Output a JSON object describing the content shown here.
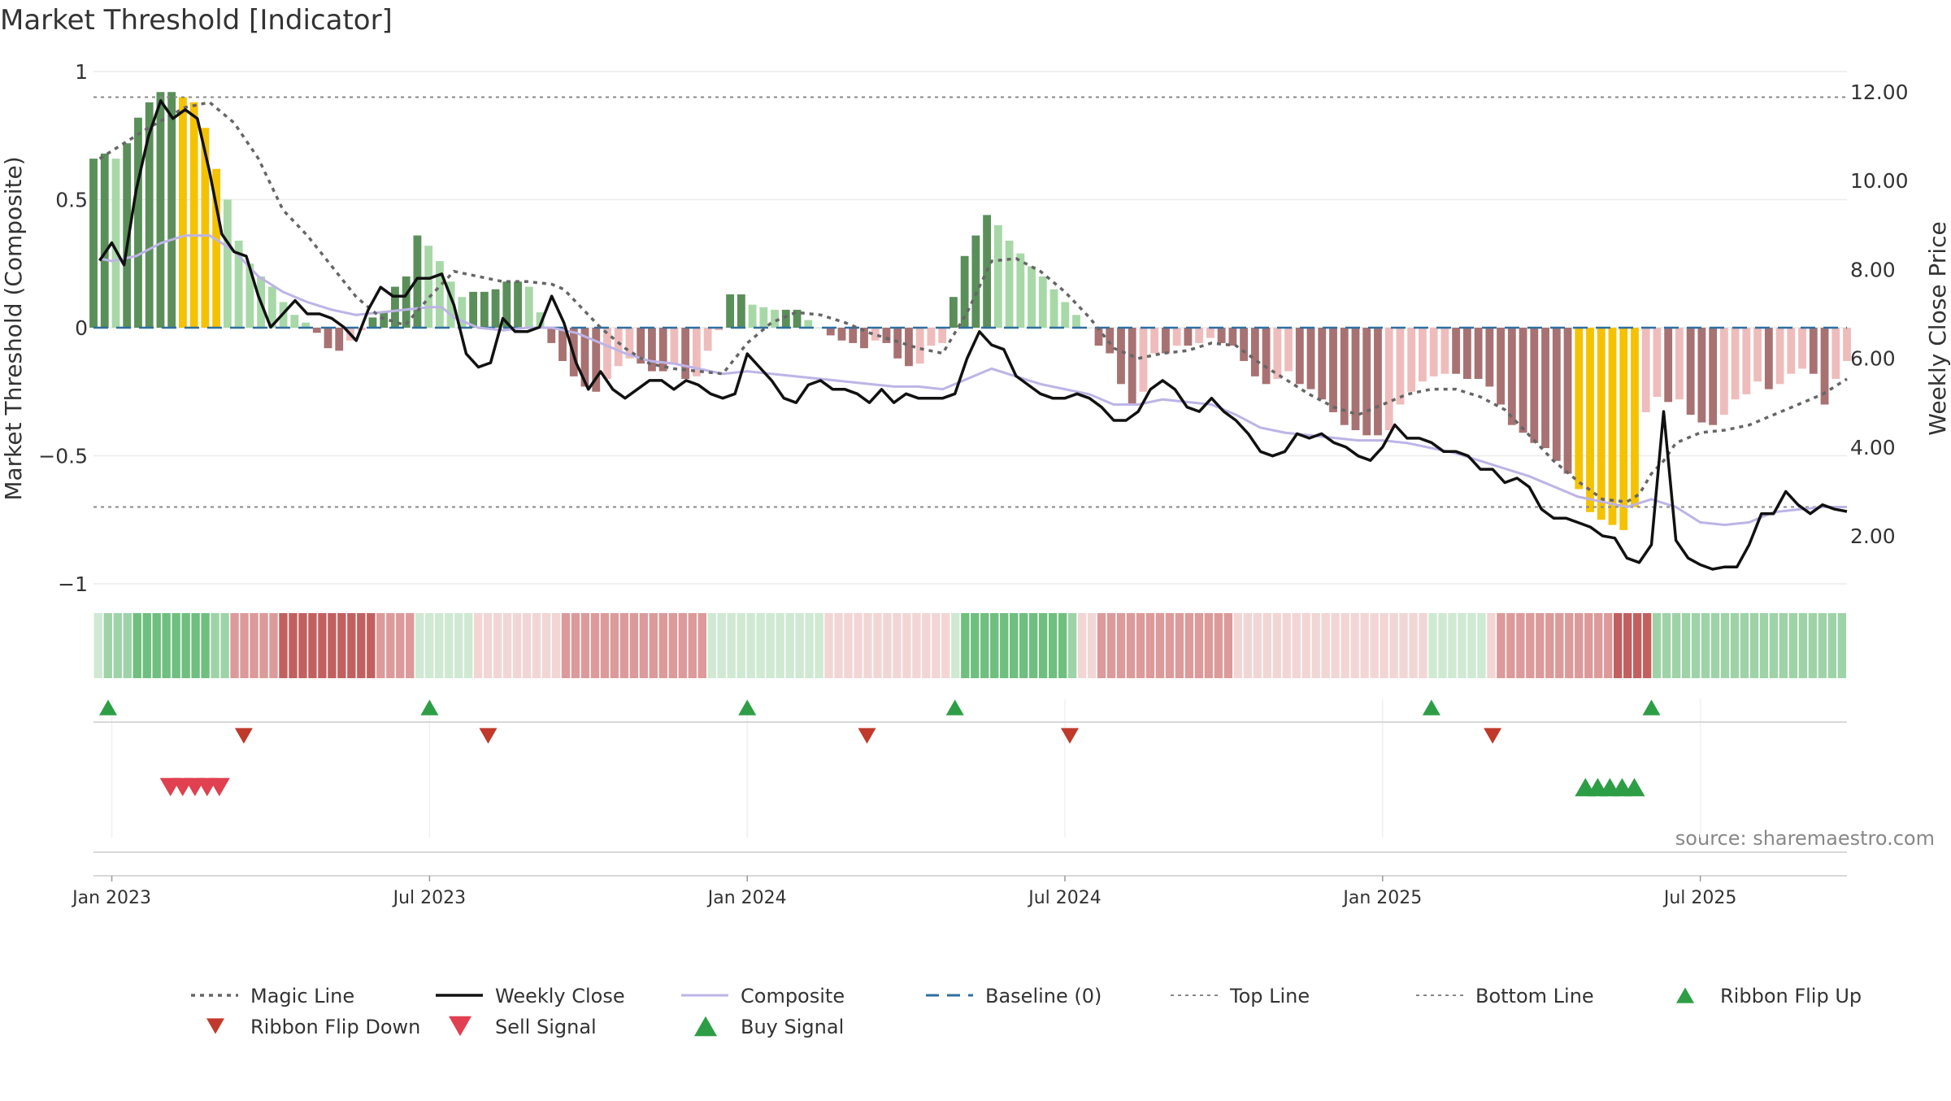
{
  "title": "Market Threshold [Indicator]",
  "source": "source: sharemaestro.com",
  "colors": {
    "green_dark": "#5a8f5a",
    "green_light": "#a8d8a8",
    "red_dark": "#a87272",
    "red_light": "#efbcbc",
    "gold": "#f5c200",
    "weekly_close": "#111111",
    "magic_line": "#666666",
    "composite": "#bdb4e6",
    "baseline": "#2f6f9f",
    "buy": "#2e9e46",
    "sell": "#d33a3a"
  },
  "chart_data": {
    "type": "bar",
    "title": "Market Threshold [Indicator]",
    "ylabel_left": "Market Threshold (Composite)",
    "ylabel_right": "Weekly Close Price",
    "ylim_left": [
      -1,
      1
    ],
    "ylim_right": [
      0.8,
      12.5
    ],
    "left_ticks": [
      {
        "v": 1,
        "label": "1"
      },
      {
        "v": 0.5,
        "label": "0.5"
      },
      {
        "v": 0,
        "label": "0"
      },
      {
        "v": -0.5,
        "label": "−0.5"
      },
      {
        "v": -1,
        "label": "−1"
      }
    ],
    "right_ticks": [
      {
        "v": 12,
        "label": "12.00"
      },
      {
        "v": 10,
        "label": "10.00"
      },
      {
        "v": 8,
        "label": "8.00"
      },
      {
        "v": 6,
        "label": "6.00"
      },
      {
        "v": 4,
        "label": "4.00"
      },
      {
        "v": 2,
        "label": "2.00"
      }
    ],
    "x_ticks": [
      {
        "w": 0,
        "label": "Jan 2023"
      },
      {
        "w": 26,
        "label": "Jul 2023"
      },
      {
        "w": 52,
        "label": "Jan 2024"
      },
      {
        "w": 78,
        "label": "Jul 2024"
      },
      {
        "w": 104,
        "label": "Jan 2025"
      },
      {
        "w": 130,
        "label": "Jul 2025"
      }
    ],
    "x_range_weeks": [
      -1.5,
      142
    ],
    "top_line": 0.9,
    "bottom_line": -0.7,
    "baseline": 0,
    "weekly_close": [
      [
        -1,
        8.2
      ],
      [
        0,
        8.6
      ],
      [
        1,
        8.1
      ],
      [
        2,
        9.8
      ],
      [
        3,
        11.0
      ],
      [
        4,
        11.8
      ],
      [
        5,
        11.4
      ],
      [
        6,
        11.6
      ],
      [
        7,
        11.4
      ],
      [
        8,
        10.2
      ],
      [
        9,
        8.8
      ],
      [
        10,
        8.4
      ],
      [
        11,
        8.3
      ],
      [
        12,
        7.4
      ],
      [
        13,
        6.7
      ],
      [
        14,
        7.0
      ],
      [
        15,
        7.3
      ],
      [
        16,
        7.0
      ],
      [
        17,
        7.0
      ],
      [
        18,
        6.9
      ],
      [
        19,
        6.7
      ],
      [
        20,
        6.4
      ],
      [
        21,
        7.1
      ],
      [
        22,
        7.6
      ],
      [
        23,
        7.4
      ],
      [
        24,
        7.4
      ],
      [
        25,
        7.8
      ],
      [
        26,
        7.8
      ],
      [
        27,
        7.9
      ],
      [
        28,
        7.2
      ],
      [
        29,
        6.1
      ],
      [
        30,
        5.8
      ],
      [
        31,
        5.9
      ],
      [
        32,
        6.9
      ],
      [
        33,
        6.6
      ],
      [
        34,
        6.6
      ],
      [
        35,
        6.7
      ],
      [
        36,
        7.4
      ],
      [
        37,
        6.8
      ],
      [
        38,
        5.9
      ],
      [
        39,
        5.3
      ],
      [
        40,
        5.7
      ],
      [
        41,
        5.3
      ],
      [
        42,
        5.1
      ],
      [
        43,
        5.3
      ],
      [
        44,
        5.5
      ],
      [
        45,
        5.5
      ],
      [
        46,
        5.3
      ],
      [
        47,
        5.5
      ],
      [
        48,
        5.4
      ],
      [
        49,
        5.2
      ],
      [
        50,
        5.1
      ],
      [
        51,
        5.2
      ],
      [
        52,
        6.1
      ],
      [
        53,
        5.8
      ],
      [
        54,
        5.5
      ],
      [
        55,
        5.1
      ],
      [
        56,
        5.0
      ],
      [
        57,
        5.4
      ],
      [
        58,
        5.5
      ],
      [
        59,
        5.3
      ],
      [
        60,
        5.3
      ],
      [
        61,
        5.2
      ],
      [
        62,
        5.0
      ],
      [
        63,
        5.3
      ],
      [
        64,
        5.0
      ],
      [
        65,
        5.2
      ],
      [
        66,
        5.1
      ],
      [
        67,
        5.1
      ],
      [
        68,
        5.1
      ],
      [
        69,
        5.2
      ],
      [
        70,
        6.0
      ],
      [
        71,
        6.6
      ],
      [
        72,
        6.3
      ],
      [
        73,
        6.2
      ],
      [
        74,
        5.6
      ],
      [
        75,
        5.4
      ],
      [
        76,
        5.2
      ],
      [
        77,
        5.1
      ],
      [
        78,
        5.1
      ],
      [
        79,
        5.2
      ],
      [
        80,
        5.1
      ],
      [
        81,
        4.9
      ],
      [
        82,
        4.6
      ],
      [
        83,
        4.6
      ],
      [
        84,
        4.8
      ],
      [
        85,
        5.3
      ],
      [
        86,
        5.5
      ],
      [
        87,
        5.3
      ],
      [
        88,
        4.9
      ],
      [
        89,
        4.8
      ],
      [
        90,
        5.1
      ],
      [
        91,
        4.8
      ],
      [
        92,
        4.6
      ],
      [
        93,
        4.3
      ],
      [
        94,
        3.9
      ],
      [
        95,
        3.8
      ],
      [
        96,
        3.9
      ],
      [
        97,
        4.3
      ],
      [
        98,
        4.2
      ],
      [
        99,
        4.3
      ],
      [
        100,
        4.1
      ],
      [
        101,
        4.0
      ],
      [
        102,
        3.8
      ],
      [
        103,
        3.7
      ],
      [
        104,
        4.0
      ],
      [
        105,
        4.5
      ],
      [
        106,
        4.2
      ],
      [
        107,
        4.2
      ],
      [
        108,
        4.1
      ],
      [
        109,
        3.9
      ],
      [
        110,
        3.9
      ],
      [
        111,
        3.8
      ],
      [
        112,
        3.5
      ],
      [
        113,
        3.5
      ],
      [
        114,
        3.2
      ],
      [
        115,
        3.3
      ],
      [
        116,
        3.1
      ],
      [
        117,
        2.6
      ],
      [
        118,
        2.4
      ],
      [
        119,
        2.4
      ],
      [
        120,
        2.3
      ],
      [
        121,
        2.2
      ],
      [
        122,
        2.0
      ],
      [
        123,
        1.95
      ],
      [
        124,
        1.5
      ],
      [
        125,
        1.4
      ],
      [
        126,
        1.8
      ],
      [
        127,
        4.8
      ],
      [
        128,
        1.9
      ],
      [
        129,
        1.5
      ],
      [
        130,
        1.35
      ],
      [
        131,
        1.25
      ],
      [
        132,
        1.3
      ],
      [
        133,
        1.3
      ],
      [
        134,
        1.8
      ],
      [
        135,
        2.5
      ],
      [
        136,
        2.5
      ],
      [
        137,
        3.0
      ],
      [
        138,
        2.7
      ],
      [
        139,
        2.5
      ],
      [
        140,
        2.7
      ],
      [
        141,
        2.6
      ],
      [
        142,
        2.55
      ]
    ],
    "magic_line": [
      [
        -1,
        0.66
      ],
      [
        3,
        0.78
      ],
      [
        6,
        0.86
      ],
      [
        8,
        0.88
      ],
      [
        10,
        0.8
      ],
      [
        12,
        0.66
      ],
      [
        14,
        0.46
      ],
      [
        16,
        0.36
      ],
      [
        18,
        0.24
      ],
      [
        20,
        0.12
      ],
      [
        22,
        0.04
      ],
      [
        24,
        0.01
      ],
      [
        26,
        0.12
      ],
      [
        28,
        0.22
      ],
      [
        30,
        0.2
      ],
      [
        32,
        0.18
      ],
      [
        34,
        0.18
      ],
      [
        36,
        0.17
      ],
      [
        37,
        0.15
      ],
      [
        40,
        0.0
      ],
      [
        42,
        -0.08
      ],
      [
        44,
        -0.14
      ],
      [
        46,
        -0.16
      ],
      [
        48,
        -0.17
      ],
      [
        50,
        -0.18
      ],
      [
        52,
        -0.06
      ],
      [
        54,
        0.02
      ],
      [
        56,
        0.06
      ],
      [
        58,
        0.05
      ],
      [
        60,
        0.02
      ],
      [
        62,
        -0.02
      ],
      [
        64,
        -0.05
      ],
      [
        66,
        -0.08
      ],
      [
        68,
        -0.1
      ],
      [
        70,
        0.06
      ],
      [
        72,
        0.26
      ],
      [
        74,
        0.27
      ],
      [
        76,
        0.22
      ],
      [
        78,
        0.14
      ],
      [
        80,
        0.04
      ],
      [
        82,
        -0.08
      ],
      [
        84,
        -0.12
      ],
      [
        86,
        -0.1
      ],
      [
        88,
        -0.09
      ],
      [
        90,
        -0.06
      ],
      [
        92,
        -0.07
      ],
      [
        94,
        -0.14
      ],
      [
        96,
        -0.2
      ],
      [
        98,
        -0.26
      ],
      [
        100,
        -0.31
      ],
      [
        102,
        -0.34
      ],
      [
        104,
        -0.3
      ],
      [
        106,
        -0.26
      ],
      [
        108,
        -0.24
      ],
      [
        110,
        -0.24
      ],
      [
        112,
        -0.27
      ],
      [
        114,
        -0.32
      ],
      [
        116,
        -0.42
      ],
      [
        118,
        -0.52
      ],
      [
        120,
        -0.6
      ],
      [
        122,
        -0.67
      ],
      [
        124,
        -0.68
      ],
      [
        125,
        -0.65
      ],
      [
        126,
        -0.57
      ],
      [
        127,
        -0.52
      ],
      [
        128,
        -0.45
      ],
      [
        130,
        -0.41
      ],
      [
        132,
        -0.4
      ],
      [
        134,
        -0.38
      ],
      [
        136,
        -0.34
      ],
      [
        138,
        -0.3
      ],
      [
        140,
        -0.26
      ],
      [
        142,
        -0.2
      ]
    ],
    "composite": [
      [
        -1,
        0.27
      ],
      [
        0,
        0.26
      ],
      [
        2,
        0.28
      ],
      [
        4,
        0.33
      ],
      [
        6,
        0.36
      ],
      [
        8,
        0.36
      ],
      [
        10,
        0.3
      ],
      [
        12,
        0.2
      ],
      [
        14,
        0.14
      ],
      [
        16,
        0.1
      ],
      [
        18,
        0.07
      ],
      [
        20,
        0.05
      ],
      [
        22,
        0.06
      ],
      [
        24,
        0.07
      ],
      [
        26,
        0.08
      ],
      [
        27,
        0.08
      ],
      [
        28,
        0.04
      ],
      [
        30,
        0.0
      ],
      [
        32,
        -0.01
      ],
      [
        34,
        0.0
      ],
      [
        36,
        0.0
      ],
      [
        38,
        -0.02
      ],
      [
        40,
        -0.06
      ],
      [
        42,
        -0.1
      ],
      [
        44,
        -0.13
      ],
      [
        46,
        -0.14
      ],
      [
        48,
        -0.16
      ],
      [
        50,
        -0.18
      ],
      [
        52,
        -0.17
      ],
      [
        54,
        -0.18
      ],
      [
        56,
        -0.19
      ],
      [
        58,
        -0.2
      ],
      [
        60,
        -0.21
      ],
      [
        62,
        -0.22
      ],
      [
        64,
        -0.23
      ],
      [
        66,
        -0.23
      ],
      [
        68,
        -0.24
      ],
      [
        70,
        -0.2
      ],
      [
        72,
        -0.16
      ],
      [
        74,
        -0.19
      ],
      [
        76,
        -0.22
      ],
      [
        78,
        -0.24
      ],
      [
        80,
        -0.26
      ],
      [
        82,
        -0.3
      ],
      [
        84,
        -0.3
      ],
      [
        86,
        -0.28
      ],
      [
        88,
        -0.29
      ],
      [
        90,
        -0.3
      ],
      [
        92,
        -0.34
      ],
      [
        94,
        -0.39
      ],
      [
        96,
        -0.41
      ],
      [
        98,
        -0.42
      ],
      [
        100,
        -0.43
      ],
      [
        102,
        -0.44
      ],
      [
        104,
        -0.44
      ],
      [
        106,
        -0.45
      ],
      [
        108,
        -0.47
      ],
      [
        110,
        -0.49
      ],
      [
        112,
        -0.52
      ],
      [
        114,
        -0.55
      ],
      [
        116,
        -0.58
      ],
      [
        118,
        -0.62
      ],
      [
        120,
        -0.66
      ],
      [
        122,
        -0.68
      ],
      [
        124,
        -0.7
      ],
      [
        126,
        -0.67
      ],
      [
        128,
        -0.7
      ],
      [
        130,
        -0.76
      ],
      [
        132,
        -0.77
      ],
      [
        134,
        -0.76
      ],
      [
        136,
        -0.72
      ],
      [
        138,
        -0.71
      ],
      [
        140,
        -0.7
      ],
      [
        142,
        -0.7
      ]
    ],
    "bars": [
      0.66,
      0.68,
      0.66,
      0.72,
      0.82,
      0.88,
      0.92,
      0.92,
      0.9,
      0.88,
      0.78,
      0.62,
      0.5,
      0.34,
      0.25,
      0.2,
      0.16,
      0.1,
      0.05,
      0.02,
      -0.02,
      -0.08,
      -0.09,
      -0.05,
      -0.01,
      0.04,
      0.06,
      0.16,
      0.2,
      0.36,
      0.32,
      0.26,
      0.18,
      0.12,
      0.14,
      0.14,
      0.15,
      0.18,
      0.18,
      0.16,
      0.06,
      -0.06,
      -0.13,
      -0.19,
      -0.23,
      -0.25,
      -0.2,
      -0.15,
      -0.12,
      -0.14,
      -0.17,
      -0.17,
      -0.14,
      -0.2,
      -0.19,
      -0.09,
      -0.01,
      0.13,
      0.13,
      0.09,
      0.08,
      0.07,
      0.07,
      0.07,
      0.03,
      0.0,
      -0.03,
      -0.05,
      -0.06,
      -0.08,
      -0.05,
      -0.06,
      -0.12,
      -0.15,
      -0.14,
      -0.07,
      -0.06,
      0.12,
      0.28,
      0.36,
      0.44,
      0.4,
      0.34,
      0.29,
      0.24,
      0.2,
      0.15,
      0.1,
      0.05,
      0.0,
      -0.07,
      -0.1,
      -0.22,
      -0.3,
      -0.25,
      -0.1,
      -0.1,
      -0.07,
      -0.07,
      -0.06,
      -0.04,
      -0.06,
      -0.07,
      -0.13,
      -0.19,
      -0.22,
      -0.2,
      -0.17,
      -0.22,
      -0.24,
      -0.28,
      -0.33,
      -0.38,
      -0.4,
      -0.42,
      -0.42,
      -0.4,
      -0.3,
      -0.25,
      -0.21,
      -0.19,
      -0.18,
      -0.18,
      -0.2,
      -0.2,
      -0.23,
      -0.3,
      -0.38,
      -0.41,
      -0.45,
      -0.47,
      -0.52,
      -0.57,
      -0.63,
      -0.72,
      -0.75,
      -0.77,
      -0.79,
      -0.7,
      -0.33,
      -0.27,
      -0.29,
      -0.28,
      -0.34,
      -0.37,
      -0.38,
      -0.34,
      -0.28,
      -0.26,
      -0.21,
      -0.24,
      -0.22,
      -0.18,
      -0.16,
      -0.18,
      -0.3,
      -0.2,
      -0.13
    ],
    "ribbon": [
      "gl",
      "gm",
      "gm",
      "gm",
      "gd",
      "gd",
      "gd",
      "gd",
      "gd",
      "gd",
      "gd",
      "gd",
      "gm",
      "gm",
      "rm",
      "rm",
      "rm",
      "rm",
      "rm",
      "rd",
      "rd",
      "rd",
      "rd",
      "rd",
      "rd",
      "rd",
      "rd",
      "rd",
      "rd",
      "rm",
      "rm",
      "rm",
      "rm",
      "gl",
      "gl",
      "gl",
      "gl",
      "gl",
      "gl",
      "rl",
      "rl",
      "rl",
      "rl",
      "rl",
      "rl",
      "rl",
      "rl",
      "rl",
      "rm",
      "rm",
      "rm",
      "rm",
      "rm",
      "rm",
      "rm",
      "rm",
      "rm",
      "rm",
      "rm",
      "rm",
      "rm",
      "rm",
      "rm",
      "gl",
      "gl",
      "gl",
      "gl",
      "gl",
      "gl",
      "gl",
      "gl",
      "gl",
      "gl",
      "gl",
      "gl",
      "rl",
      "rl",
      "rl",
      "rl",
      "rl",
      "rl",
      "rl",
      "rl",
      "rl",
      "rl",
      "rl",
      "rl",
      "rl",
      "gl",
      "gd",
      "gd",
      "gd",
      "gd",
      "gd",
      "gd",
      "gd",
      "gd",
      "gd",
      "gd",
      "gd",
      "gm",
      "rl",
      "rl",
      "rm",
      "rm",
      "rm",
      "rm",
      "rm",
      "rm",
      "rm",
      "rm",
      "rm",
      "rm",
      "rm",
      "rm",
      "rm",
      "rm",
      "rl",
      "rl",
      "rl",
      "rl",
      "rl",
      "rl",
      "rl",
      "rl",
      "rl",
      "rl",
      "rl",
      "rl",
      "rl",
      "rl",
      "rl",
      "rl",
      "rl",
      "rl",
      "rl",
      "rl",
      "gl",
      "gl",
      "gl",
      "gl",
      "gl",
      "gl",
      "rl",
      "rm",
      "rm",
      "rm",
      "rm",
      "rm",
      "rm",
      "rm",
      "rm",
      "rm",
      "rm",
      "rm",
      "rm",
      "rd",
      "rd",
      "rd",
      "rd",
      "gm",
      "gm",
      "gm",
      "gm",
      "gm",
      "gm",
      "gm",
      "gm",
      "gm",
      "gm",
      "gm",
      "gm",
      "gm",
      "gm",
      "gm",
      "gm",
      "gm",
      "gm",
      "gm",
      "gm"
    ],
    "ribbon_flip_up": [
      -0.3,
      26,
      52,
      69,
      108,
      126
    ],
    "ribbon_flip_down": [
      10.8,
      30.8,
      61.8,
      78.4,
      113
    ],
    "sell_signal": [
      4.8,
      5.8,
      6.8,
      7.8,
      8.8
    ],
    "buy_signal": [
      120.6,
      121.6,
      122.6,
      123.6,
      124.6
    ],
    "legend": [
      {
        "label": "Magic Line",
        "kind": "dotted",
        "color": "#666666"
      },
      {
        "label": "Weekly Close",
        "kind": "solid",
        "color": "#111111"
      },
      {
        "label": "Composite",
        "kind": "thin",
        "color": "#bdb4e6"
      },
      {
        "label": "Baseline (0)",
        "kind": "dashed",
        "color": "#2f6f9f"
      },
      {
        "label": "Top Line",
        "kind": "dotted-light",
        "color": "#888888"
      },
      {
        "label": "Bottom Line",
        "kind": "dotted-light",
        "color": "#888888"
      },
      {
        "label": "Ribbon Flip Up",
        "kind": "tri-up",
        "color": "#2e9e46"
      },
      {
        "label": "Ribbon Flip Down",
        "kind": "tri-down",
        "color": "#c0392b"
      },
      {
        "label": "Sell Signal",
        "kind": "tri-down-big",
        "color": "#e04050"
      },
      {
        "label": "Buy Signal",
        "kind": "tri-up-big",
        "color": "#2e9e46"
      }
    ]
  }
}
